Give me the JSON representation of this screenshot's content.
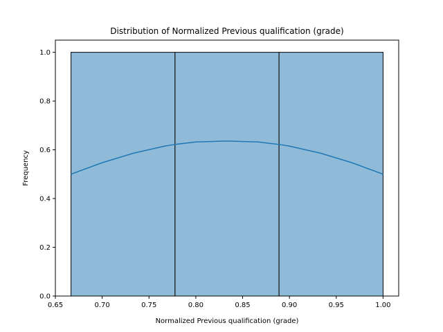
{
  "chart_data": {
    "type": "bar",
    "title": "Distribution of Normalized Previous qualification (grade)",
    "xlabel": "Normalized Previous qualification (grade)",
    "ylabel": "Frequency",
    "xlim": [
      0.65,
      1.0167
    ],
    "ylim": [
      0,
      1.05
    ],
    "x_ticks": [
      0.65,
      0.7,
      0.75,
      0.8,
      0.85,
      0.9,
      0.95,
      1.0
    ],
    "x_tick_labels": [
      "0.65",
      "0.70",
      "0.75",
      "0.80",
      "0.85",
      "0.90",
      "0.95",
      "1.00"
    ],
    "y_ticks": [
      0.0,
      0.2,
      0.4,
      0.6,
      0.8,
      1.0
    ],
    "y_tick_labels": [
      "0.0",
      "0.2",
      "0.4",
      "0.6",
      "0.8",
      "1.0"
    ],
    "bins": [
      {
        "x0": 0.6667,
        "x1": 0.7778,
        "value": 1.0
      },
      {
        "x0": 0.7778,
        "x1": 0.8889,
        "value": 1.0
      },
      {
        "x0": 0.8889,
        "x1": 1.0,
        "value": 1.0
      }
    ],
    "kde": {
      "x": [
        0.6667,
        0.7,
        0.7333,
        0.7667,
        0.7778,
        0.8,
        0.8333,
        0.8667,
        0.8889,
        0.9,
        0.9333,
        0.9667,
        1.0
      ],
      "y": [
        0.5,
        0.547,
        0.586,
        0.615,
        0.622,
        0.632,
        0.636,
        0.632,
        0.622,
        0.615,
        0.586,
        0.547,
        0.5
      ]
    },
    "bar_color": "#8fbbd9",
    "bar_edge_color": "#000000",
    "kde_color": "#1f77b4",
    "grid": false,
    "legend": "none"
  }
}
